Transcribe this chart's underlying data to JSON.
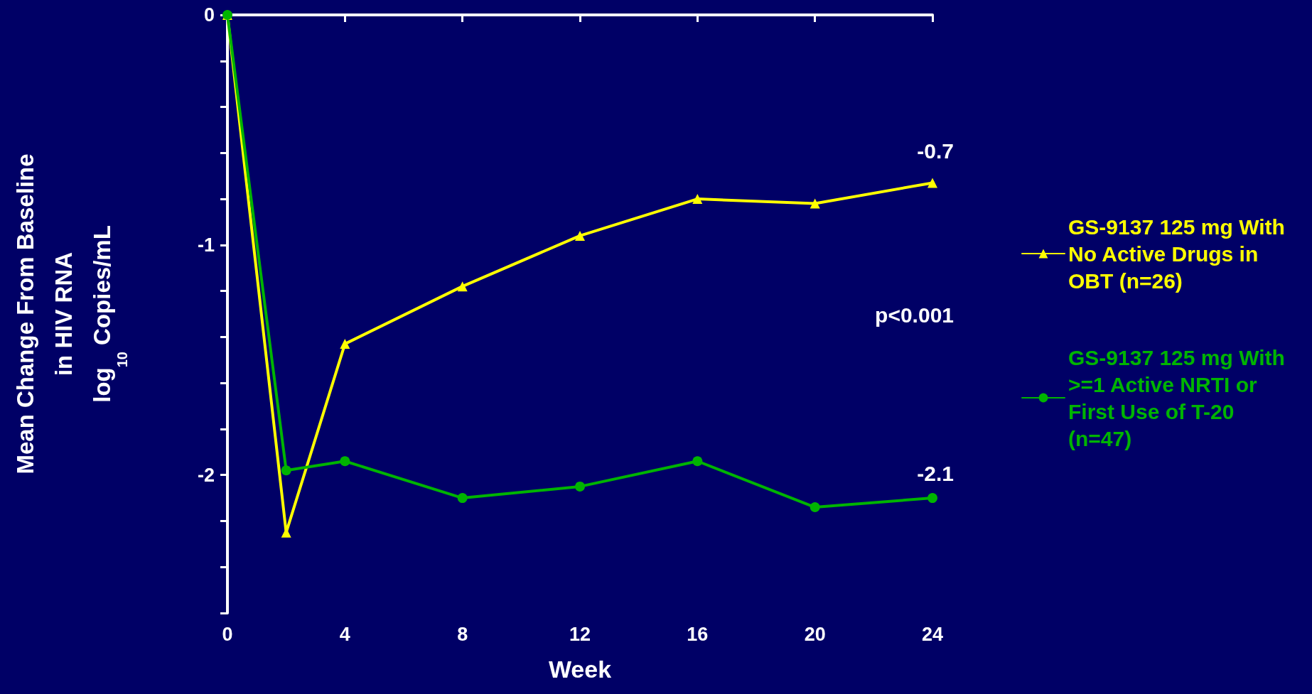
{
  "chart_data": {
    "type": "line",
    "xlabel": "Week",
    "ylabel": "Mean Change From Baseline\nin HIV RNA\nlog$_{10}$ Copies/mL",
    "x": [
      0,
      2,
      4,
      8,
      12,
      16,
      20,
      24
    ],
    "series": [
      {
        "name": "GS-9137 125 mg With No Active Drugs in OBT (n=26)",
        "color": "#ffff00",
        "marker": "triangle",
        "values": [
          0,
          -2.25,
          -1.43,
          -1.18,
          -0.96,
          -0.8,
          -0.82,
          -0.73
        ]
      },
      {
        "name": "GS-9137 125 mg With >=1 Active NRTI or First Use of T-20 (n=47)",
        "color": "#00b400",
        "marker": "circle",
        "values": [
          0,
          -1.98,
          -1.94,
          -2.1,
          -2.05,
          -1.94,
          -2.14,
          -2.1
        ]
      }
    ],
    "xlim": [
      0,
      24
    ],
    "xticks": [
      0,
      4,
      8,
      12,
      16,
      20,
      24
    ],
    "ylim": [
      -2.6,
      0
    ],
    "yticks": [
      0,
      {
        "value": -0.2,
        "label": null
      },
      {
        "value": -0.4,
        "label": null
      },
      {
        "value": -0.6,
        "label": null
      },
      {
        "value": -0.8,
        "label": null
      },
      -1,
      {
        "value": -1.2,
        "label": null
      },
      {
        "value": -1.4,
        "label": null
      },
      {
        "value": -1.6,
        "label": null
      },
      {
        "value": -1.8,
        "label": null
      },
      -2,
      {
        "value": -2.2,
        "label": null
      },
      {
        "value": -2.4,
        "label": null
      },
      {
        "value": -2.6,
        "label": null
      }
    ],
    "annotations": [
      {
        "text": "-0.7",
        "x": 24,
        "y": -0.7
      },
      {
        "text": "-2.1",
        "x": 24,
        "y": -2.1
      },
      "p<0.001"
    ],
    "grid": false,
    "legend": "right",
    "line_style": "solid"
  }
}
